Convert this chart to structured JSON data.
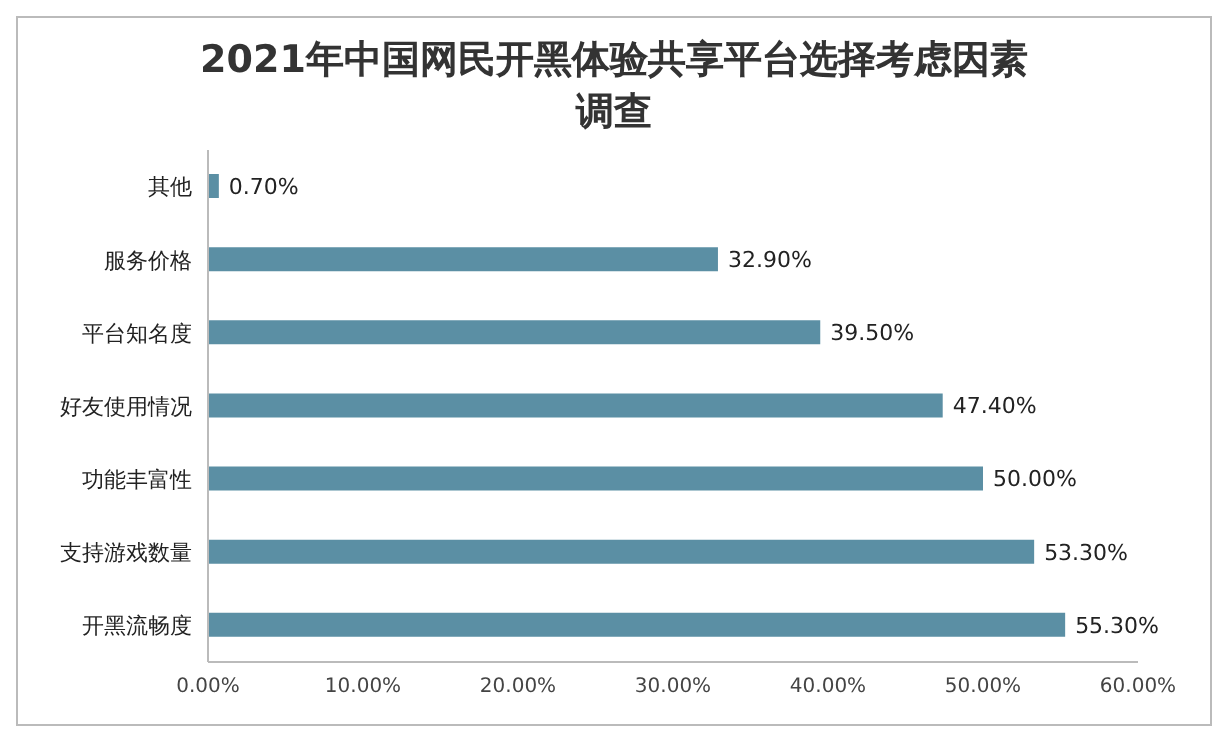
{
  "chart_data": {
    "type": "bar",
    "orientation": "horizontal",
    "title": "2021年中国网民开黑体验共享平台选择考虑因素调查",
    "categories": [
      "其他",
      "服务价格",
      "平台知名度",
      "好友使用情况",
      "功能丰富性",
      "支持游戏数量",
      "开黑流畅度"
    ],
    "values": [
      0.7,
      32.9,
      39.5,
      47.4,
      50.0,
      53.3,
      55.3
    ],
    "value_labels": [
      "0.70%",
      "32.90%",
      "39.50%",
      "47.40%",
      "50.00%",
      "53.30%",
      "55.30%"
    ],
    "color": "#5b8fa4",
    "xlim": [
      0,
      60
    ],
    "xticks": [
      {
        "value": 0,
        "label": "0.00%"
      },
      {
        "value": 10,
        "label": "10.00%"
      },
      {
        "value": 20,
        "label": "20.00%"
      },
      {
        "value": 30,
        "label": "30.00%"
      },
      {
        "value": 40,
        "label": "40.00%"
      },
      {
        "value": 50,
        "label": "50.00%"
      },
      {
        "value": 60,
        "label": "60.00%"
      }
    ],
    "grid": false,
    "legend": false
  }
}
